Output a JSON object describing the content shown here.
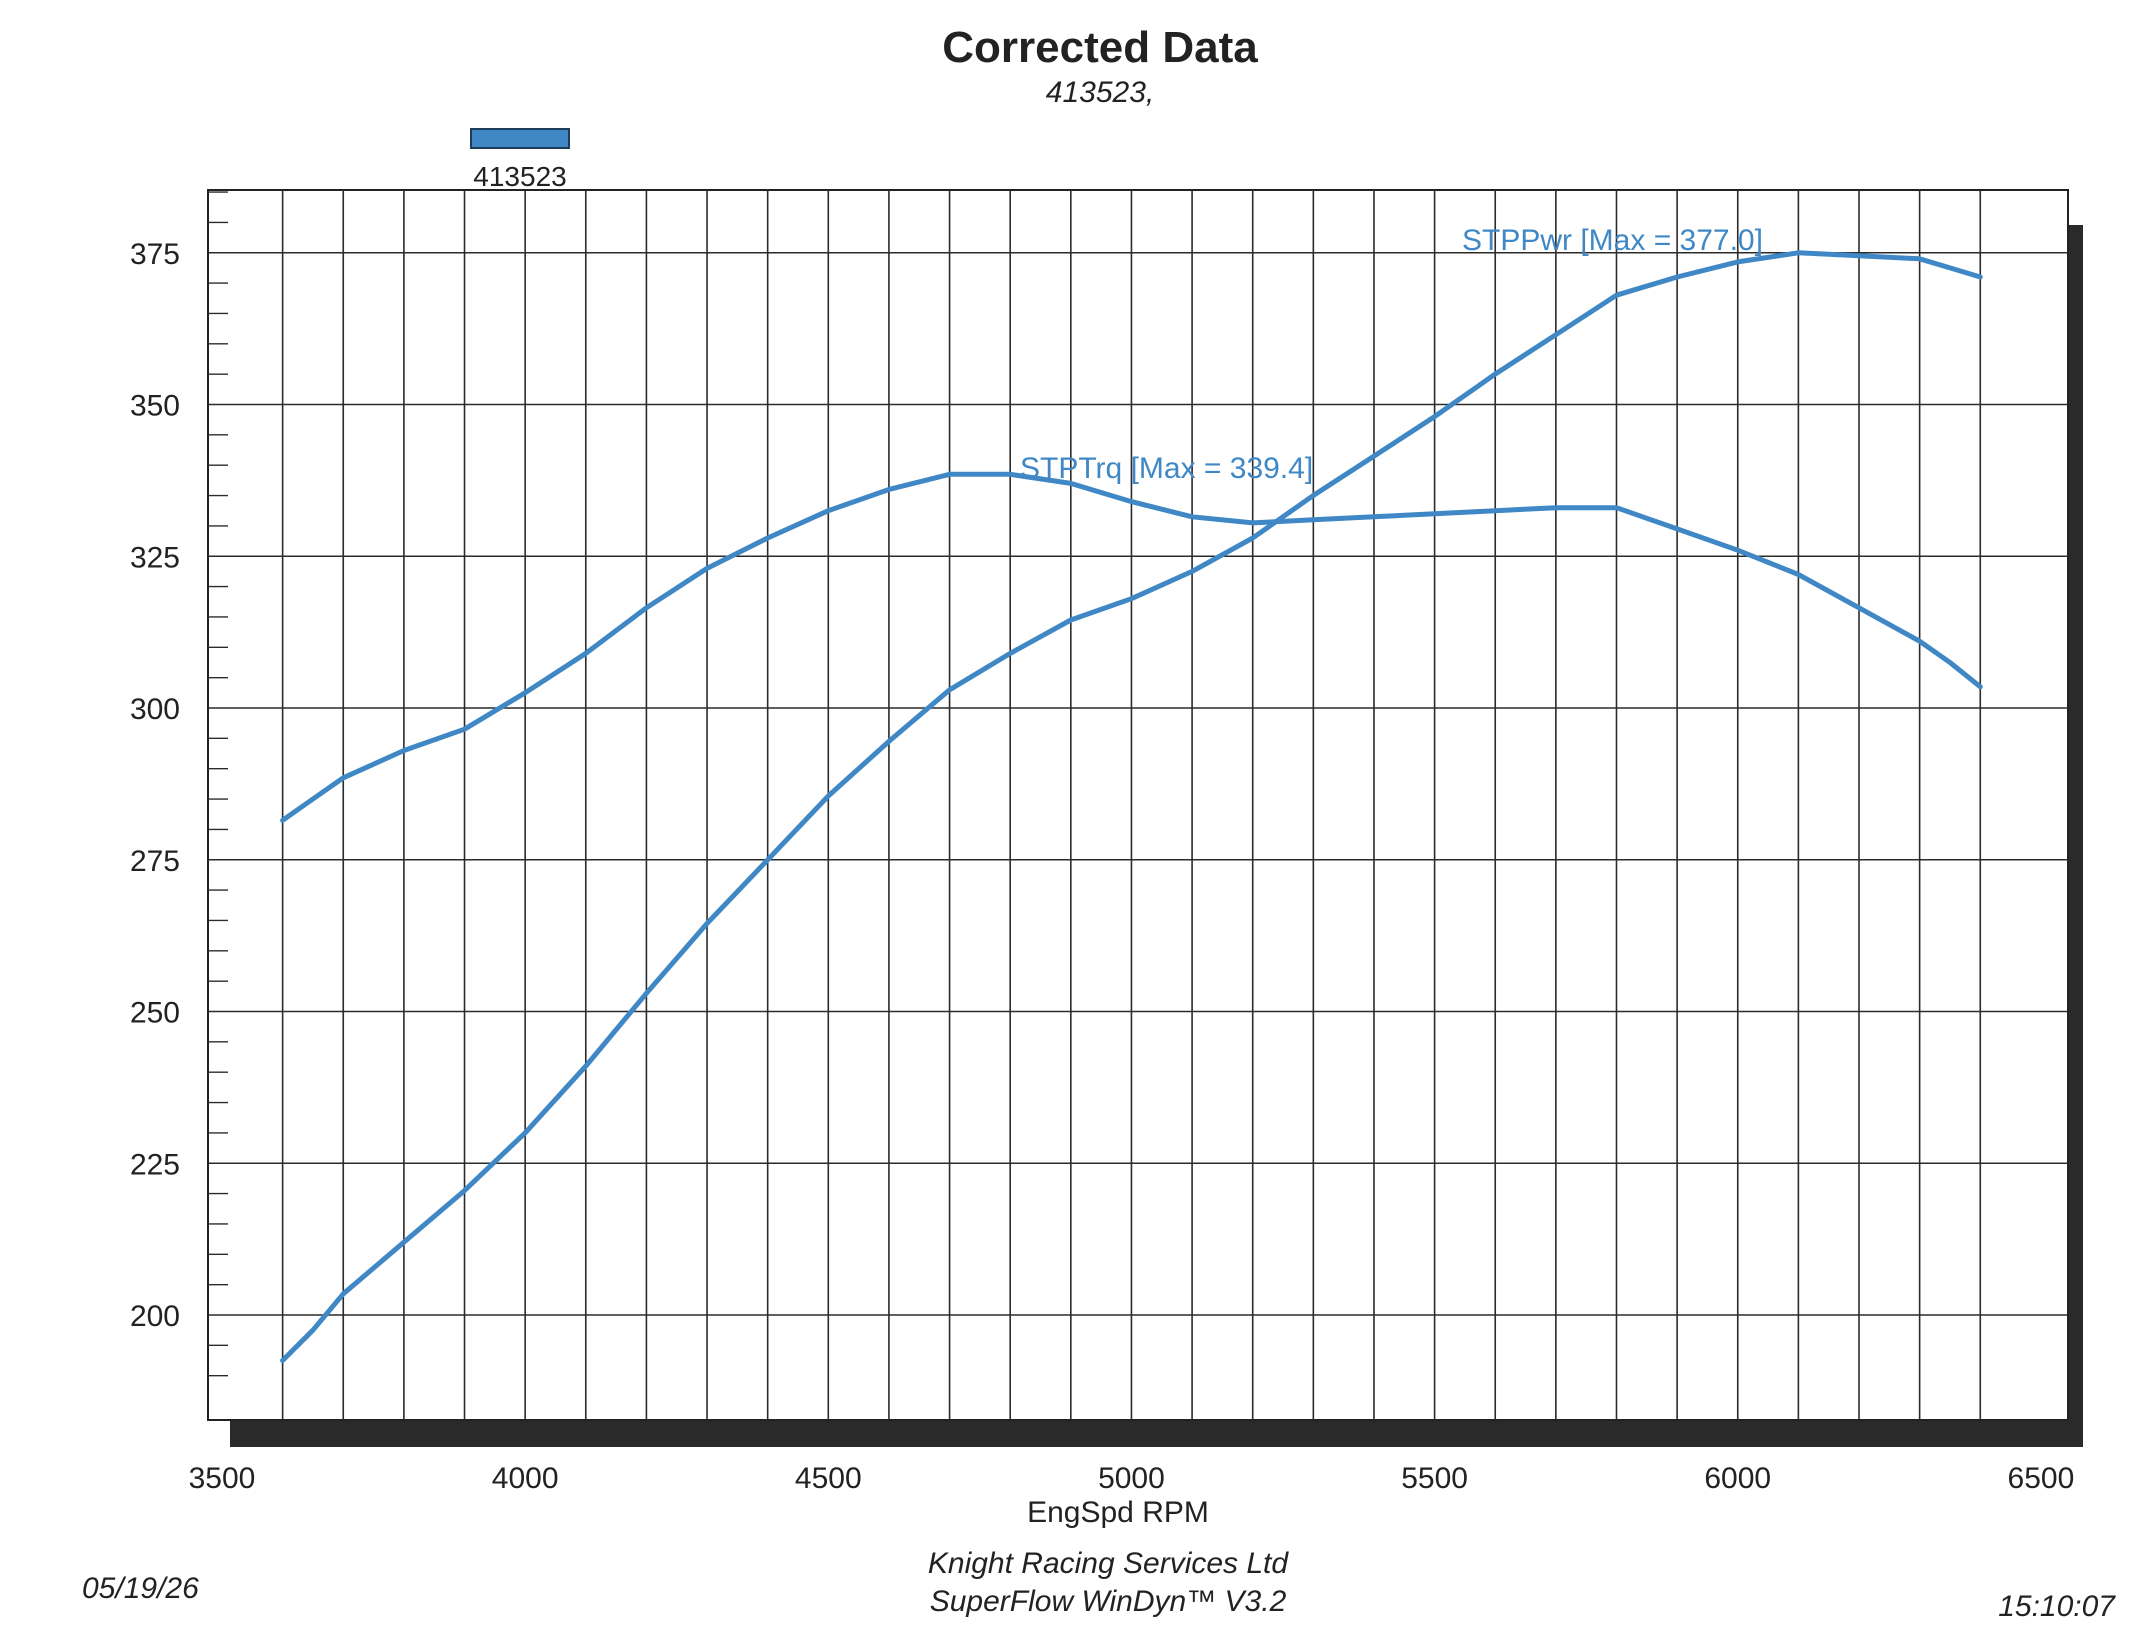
{
  "chart_data": {
    "type": "line",
    "title": "Corrected Data",
    "subtitle": "413523,",
    "xlabel": "EngSpd RPM",
    "ylabel": "",
    "xlim": [
      3500,
      6500
    ],
    "ylim": [
      184,
      386
    ],
    "x_ticks": [
      3500,
      4000,
      4500,
      5000,
      5500,
      6000,
      6500
    ],
    "y_ticks": [
      200,
      225,
      250,
      275,
      300,
      325,
      350,
      375
    ],
    "grid": true,
    "legend": {
      "position": "top-left",
      "entries": [
        {
          "label": "413523",
          "color": "#3f88c5"
        }
      ]
    },
    "series": [
      {
        "name": "STPTrq",
        "color": "#3f88c5",
        "annotation": "STPTrq [Max = 339.4]",
        "x": [
          3600,
          3650,
          3700,
          3800,
          3900,
          4000,
          4100,
          4200,
          4300,
          4400,
          4500,
          4600,
          4700,
          4800,
          4900,
          5000,
          5100,
          5200,
          5300,
          5400,
          5500,
          5600,
          5700,
          5800,
          5900,
          6000,
          6100,
          6200,
          6300,
          6350,
          6400
        ],
        "values": [
          281.5,
          285,
          288.5,
          293,
          296.5,
          302.5,
          309,
          316.5,
          323,
          328,
          332.5,
          336,
          338.5,
          338.5,
          337,
          334,
          331.5,
          330.5,
          331,
          331.5,
          332,
          332.5,
          333,
          333,
          329.5,
          326,
          322,
          316.5,
          311,
          307.5,
          303.5
        ]
      },
      {
        "name": "STPPwr",
        "color": "#3f88c5",
        "annotation": "STPPwr [Max = 377.0]",
        "x": [
          3600,
          3650,
          3700,
          3800,
          3900,
          4000,
          4100,
          4200,
          4300,
          4400,
          4500,
          4600,
          4700,
          4800,
          4900,
          5000,
          5100,
          5200,
          5300,
          5400,
          5500,
          5600,
          5700,
          5800,
          5900,
          6000,
          6100,
          6200,
          6300,
          6350,
          6400
        ],
        "values": [
          192.5,
          197.5,
          203.5,
          212,
          220.5,
          230,
          241,
          253,
          264.5,
          275,
          285.5,
          294.5,
          303,
          309,
          314.5,
          318,
          322.5,
          328,
          335,
          341.5,
          348,
          355,
          361.5,
          368,
          371,
          373.5,
          375,
          374.5,
          374,
          372.5,
          371
        ]
      }
    ]
  },
  "footer": {
    "date": "05/19/26",
    "company": "Knight Racing Services Ltd",
    "software": "SuperFlow WinDyn™ V3.2",
    "time": "15:10:07"
  }
}
